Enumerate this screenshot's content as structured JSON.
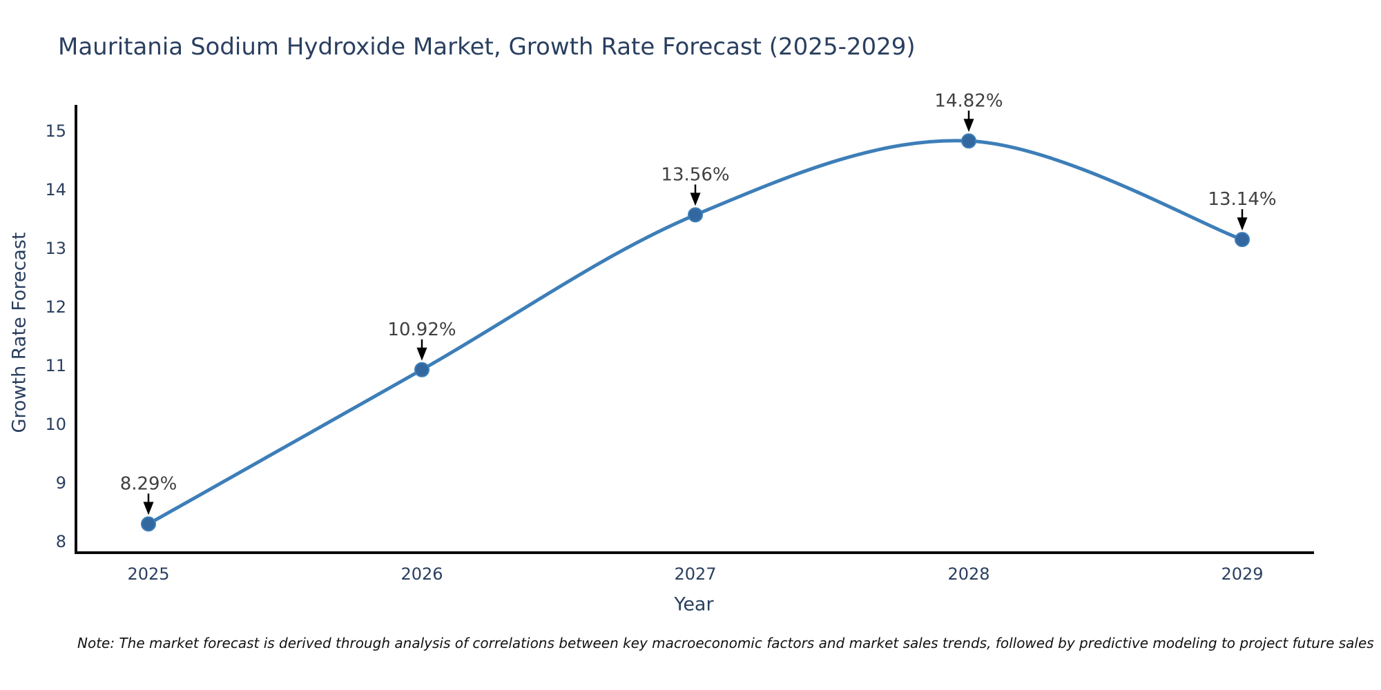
{
  "header": {
    "title": "Mauritania Sodium Hydroxide Market, Growth Rate Forecast (2025-2029)"
  },
  "chart_data": {
    "type": "line",
    "line_shape": "spline",
    "x": [
      2025,
      2026,
      2027,
      2028,
      2029
    ],
    "values": [
      8.29,
      10.92,
      13.56,
      14.82,
      13.14
    ],
    "point_labels": [
      "8.29%",
      "10.92%",
      "13.56%",
      "14.82%",
      "13.14%"
    ],
    "title": "Mauritania Sodium Hydroxide Market, Growth Rate Forecast (2025-2029)",
    "xlabel": "Year",
    "ylabel": "Growth Rate Forecast",
    "ylim": [
      7.75,
      15.4
    ],
    "yticks": [
      8,
      9,
      10,
      11,
      12,
      13,
      14,
      15
    ],
    "grid": false,
    "legend": "none",
    "annotations_have_arrows": true,
    "colors": {
      "line": "#3d7eb8",
      "marker_fill": "#32689f",
      "marker_stroke": "#3d7eb8",
      "axis_line": "#0a0a0a",
      "tick_text": "#2a3f5f",
      "annotation_text": "#404040",
      "arrow": "#000000",
      "title_text": "#2a3f5f",
      "background": "#ffffff"
    }
  },
  "footer": {
    "note": "Note: The market forecast is derived through analysis of correlations between key macroeconomic factors and market sales trends, followed by predictive modeling to project future sales"
  }
}
